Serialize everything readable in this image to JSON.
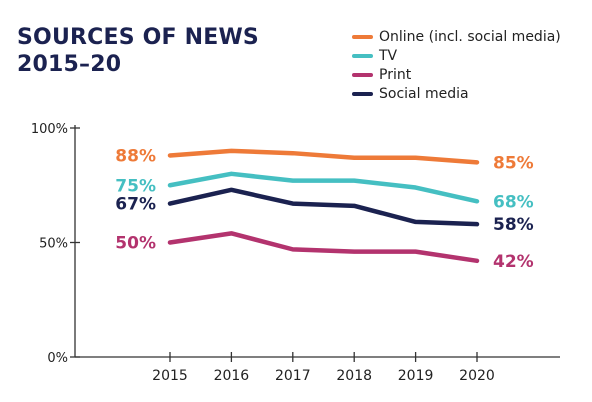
{
  "chart_data": {
    "type": "line",
    "title": "SOURCES OF NEWS",
    "subtitle": "2015–20",
    "x": [
      2015,
      2016,
      2017,
      2018,
      2019,
      2020
    ],
    "ylim": [
      0,
      100
    ],
    "yticks": [
      {
        "value": 0,
        "label": "0%"
      },
      {
        "value": 50,
        "label": "50%"
      },
      {
        "value": 100,
        "label": "100%"
      }
    ],
    "grid": false,
    "legend_position": "top-right",
    "series": [
      {
        "name": "Online (incl. social media)",
        "color": "#ee7a38",
        "values": [
          88,
          90,
          89,
          87,
          87,
          85
        ],
        "start_label": "88%",
        "end_label": "85%"
      },
      {
        "name": "TV",
        "color": "#45bfc2",
        "values": [
          75,
          80,
          77,
          77,
          74,
          68
        ],
        "start_label": "75%",
        "end_label": "68%"
      },
      {
        "name": "Print",
        "color": "#b3336e",
        "values": [
          50,
          54,
          47,
          46,
          46,
          42
        ],
        "start_label": "50%",
        "end_label": "42%"
      },
      {
        "name": "Social media",
        "color": "#1b2250",
        "values": [
          67,
          73,
          67,
          66,
          59,
          58
        ],
        "start_label": "67%",
        "end_label": "58%"
      }
    ],
    "axis_color": "#333333"
  }
}
